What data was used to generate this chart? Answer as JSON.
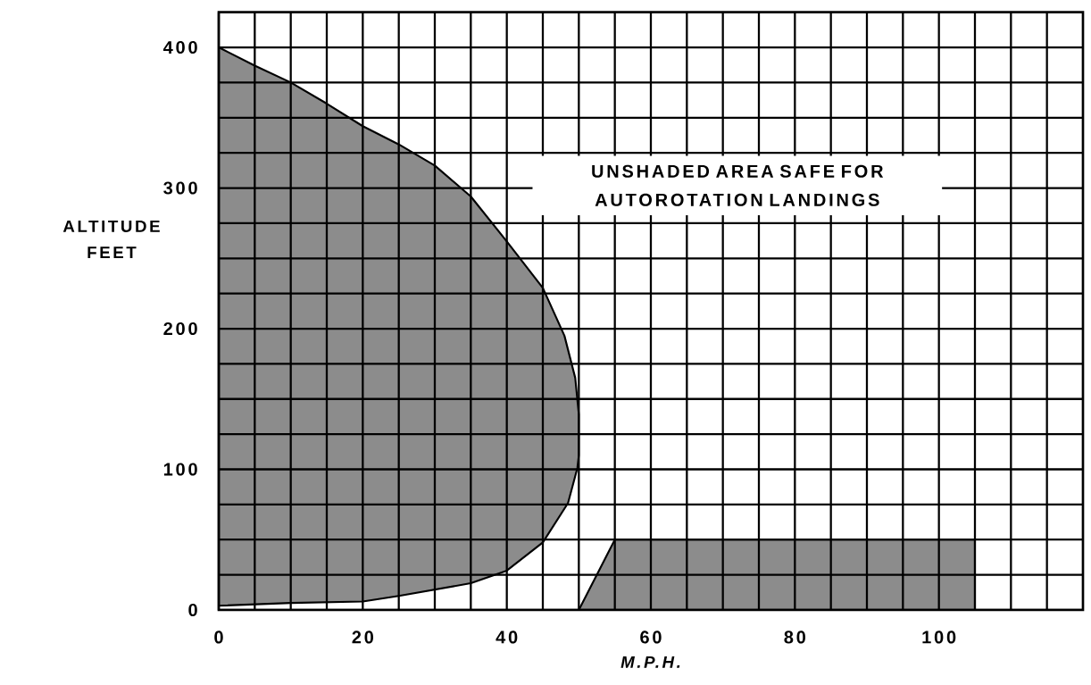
{
  "chart_data": {
    "type": "area",
    "xlabel": "M.P.H.",
    "ylabel": "ALTITUDE FEET",
    "annotations": [
      "UNSHADED AREA SAFE FOR AUTOROTATION LANDINGS"
    ],
    "series": [
      {
        "color": "#8c8c8c",
        "x": [
          0,
          5,
          10,
          15,
          20,
          25,
          30,
          35,
          40,
          45,
          48,
          49.5,
          50,
          50,
          49.8,
          48.5,
          45,
          40,
          35,
          25,
          20,
          10,
          0
        ],
        "values": [
          400,
          387,
          375,
          360,
          344,
          331,
          316,
          294,
          262,
          229,
          195,
          165,
          139,
          110,
          101,
          76,
          48,
          28,
          19,
          10,
          6,
          5,
          3
        ]
      },
      {
        "color": "#8c8c8c",
        "x": [
          50,
          55,
          105,
          105
        ],
        "values": [
          0,
          50,
          50,
          0
        ]
      }
    ],
    "xlim": [
      0,
      120
    ],
    "ylim": [
      0,
      425
    ],
    "xticks": [
      0,
      {
        "value": 5,
        "label": null
      },
      {
        "value": 10,
        "label": null
      },
      {
        "value": 15,
        "label": null
      },
      20,
      {
        "value": 25,
        "label": null
      },
      {
        "value": 30,
        "label": null
      },
      {
        "value": 35,
        "label": null
      },
      40,
      {
        "value": 45,
        "label": null
      },
      {
        "value": 50,
        "label": null
      },
      {
        "value": 55,
        "label": null
      },
      60,
      {
        "value": 65,
        "label": null
      },
      {
        "value": 70,
        "label": null
      },
      {
        "value": 75,
        "label": null
      },
      80,
      {
        "value": 85,
        "label": null
      },
      {
        "value": 90,
        "label": null
      },
      {
        "value": 95,
        "label": null
      },
      100,
      {
        "value": 105,
        "label": null
      },
      {
        "value": 110,
        "label": null
      },
      {
        "value": 115,
        "label": null
      }
    ],
    "yticks": [
      0,
      {
        "value": 25,
        "label": null
      },
      {
        "value": 50,
        "label": null
      },
      {
        "value": 75,
        "label": null
      },
      100,
      {
        "value": 125,
        "label": null
      },
      {
        "value": 150,
        "label": null
      },
      {
        "value": 175,
        "label": null
      },
      200,
      {
        "value": 225,
        "label": null
      },
      {
        "value": 250,
        "label": null
      },
      {
        "value": 275,
        "label": null
      },
      300,
      {
        "value": 325,
        "label": null
      },
      {
        "value": 350,
        "label": null
      },
      {
        "value": 375,
        "label": null
      },
      400
    ],
    "grid": true
  }
}
